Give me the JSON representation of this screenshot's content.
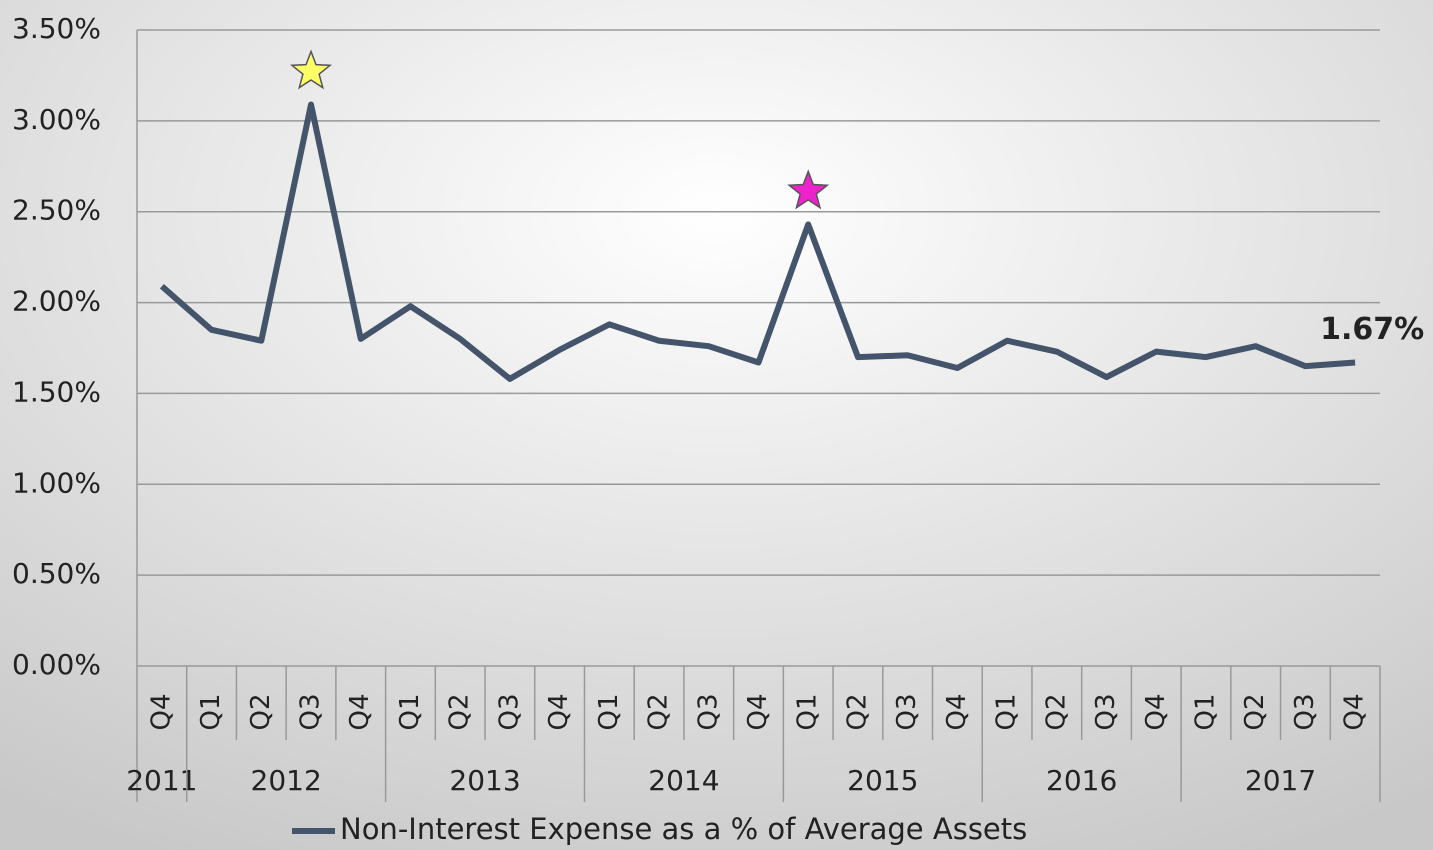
{
  "chart_data": {
    "type": "line",
    "groups": [
      {
        "label": "2011",
        "categories": [
          "Q4"
        ]
      },
      {
        "label": "2012",
        "categories": [
          "Q1",
          "Q2",
          "Q3",
          "Q4"
        ]
      },
      {
        "label": "2013",
        "categories": [
          "Q1",
          "Q2",
          "Q3",
          "Q4"
        ]
      },
      {
        "label": "2014",
        "categories": [
          "Q1",
          "Q2",
          "Q3",
          "Q4"
        ]
      },
      {
        "label": "2015",
        "categories": [
          "Q1",
          "Q2",
          "Q3",
          "Q4"
        ]
      },
      {
        "label": "2016",
        "categories": [
          "Q1",
          "Q2",
          "Q3",
          "Q4"
        ]
      },
      {
        "label": "2017",
        "categories": [
          "Q1",
          "Q2",
          "Q3",
          "Q4"
        ]
      }
    ],
    "series": [
      {
        "name": "Non-Interest Expense as a % of Average Assets",
        "color": "#44546a",
        "values": [
          2.09,
          1.85,
          1.79,
          3.09,
          1.8,
          1.98,
          1.8,
          1.58,
          1.74,
          1.88,
          1.79,
          1.76,
          1.67,
          2.43,
          1.7,
          1.71,
          1.64,
          1.79,
          1.73,
          1.59,
          1.73,
          1.7,
          1.76,
          1.65,
          1.67
        ],
        "value_labels": [
          null,
          null,
          null,
          null,
          null,
          null,
          null,
          null,
          null,
          null,
          null,
          null,
          null,
          null,
          null,
          null,
          null,
          null,
          null,
          null,
          null,
          null,
          null,
          null,
          "1.67%"
        ],
        "marker_colors": [
          null,
          null,
          null,
          "#ffff66",
          null,
          null,
          null,
          null,
          null,
          null,
          null,
          null,
          null,
          "#ee22cc",
          null,
          null,
          null,
          null,
          null,
          null,
          null,
          null,
          null,
          null,
          null
        ]
      }
    ],
    "ylim": [
      0,
      3.5
    ],
    "yticks": [
      {
        "value": 0,
        "label": "0.00%"
      },
      {
        "value": 0.5,
        "label": "0.50%"
      },
      {
        "value": 1,
        "label": "1.00%"
      },
      {
        "value": 1.5,
        "label": "1.50%"
      },
      {
        "value": 2,
        "label": "2.00%"
      },
      {
        "value": 2.5,
        "label": "2.50%"
      },
      {
        "value": 3,
        "label": "3.00%"
      },
      {
        "value": 3.5,
        "label": "3.50%"
      }
    ],
    "grid": true,
    "legend": "bottom"
  }
}
